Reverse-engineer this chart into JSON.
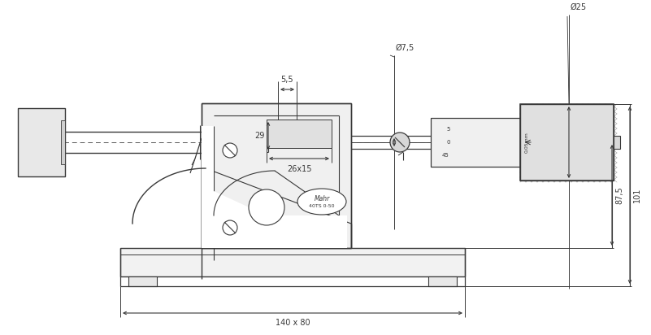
{
  "bg_color": "#ffffff",
  "lc": "#383838",
  "dc": "#383838",
  "fig_w": 8.01,
  "fig_h": 4.12,
  "dpi": 100,
  "ann": {
    "d55": "5,5",
    "d75": "Ø7,5",
    "d25": "Ø25",
    "d29": "29",
    "d26x15": "26x15",
    "d101": "101",
    "d875": "87,5",
    "d140x80": "140 x 80",
    "mahr": "Mahr",
    "model": "40TS 0-50",
    "scale5": "5",
    "scale0": "0",
    "scale45": "45"
  }
}
